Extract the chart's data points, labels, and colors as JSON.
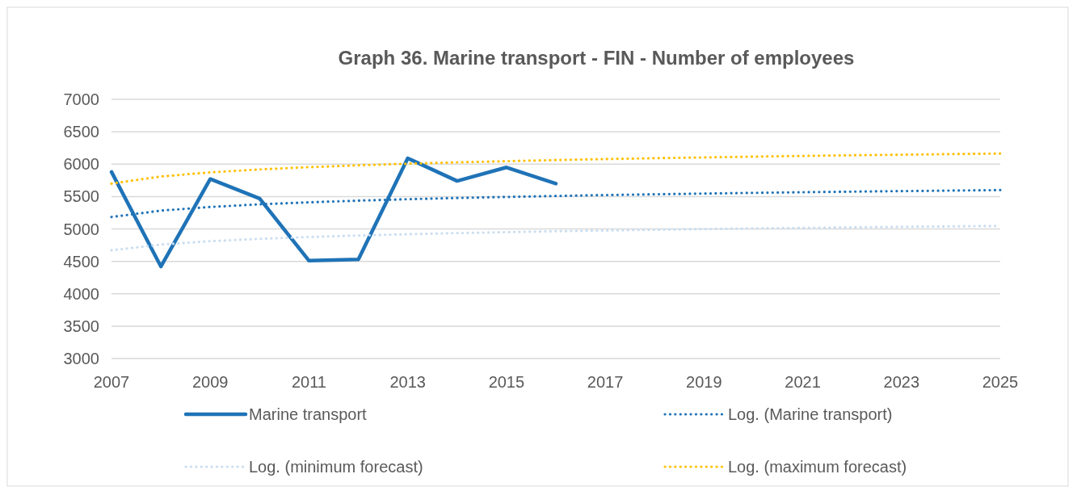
{
  "chart_data": {
    "type": "line",
    "title": "Graph 36. Marine transport - FIN - Number of employees",
    "x": [
      2007,
      2008,
      2009,
      2010,
      2011,
      2012,
      2013,
      2014,
      2015,
      2016,
      2017,
      2018,
      2019,
      2020,
      2021,
      2022,
      2023,
      2024,
      2025
    ],
    "xlim": [
      2007,
      2025
    ],
    "xticks": [
      2007,
      2009,
      2011,
      2013,
      2015,
      2017,
      2019,
      2021,
      2023,
      2025
    ],
    "ylim": [
      3000,
      7000
    ],
    "yticks": [
      3000,
      3500,
      4000,
      4500,
      5000,
      5500,
      6000,
      6500,
      7000
    ],
    "grid": "y",
    "legend": "bottom",
    "marker": "none",
    "series": [
      {
        "name": "Marine transport",
        "color": "#1f73b7",
        "line_style": "solid",
        "values": [
          5880,
          4420,
          5770,
          5470,
          4510,
          4530,
          6090,
          5740,
          5950,
          5700,
          null,
          null,
          null,
          null,
          null,
          null,
          null,
          null,
          null
        ]
      },
      {
        "name": "Log. (Marine transport)",
        "color": "#1f73b7",
        "line_style": "dotted",
        "values": [
          5184,
          5282,
          5339,
          5380,
          5411,
          5437,
          5459,
          5478,
          5494,
          5509,
          5523,
          5535,
          5546,
          5557,
          5567,
          5576,
          5584,
          5592,
          5600
        ]
      },
      {
        "name": "Log. (minimum forecast)",
        "color": "#c9ddf0",
        "line_style": "dotted",
        "values": [
          4670,
          4759,
          4811,
          4847,
          4876,
          4899,
          4919,
          4936,
          4951,
          4965,
          4977,
          4988,
          4998,
          5008,
          5017,
          5025,
          5033,
          5040,
          5047
        ]
      },
      {
        "name": "Log. (maximum forecast)",
        "color": "#ffc000",
        "line_style": "dotted",
        "values": [
          5700,
          5809,
          5873,
          5918,
          5954,
          5982,
          6007,
          6028,
          6046,
          6063,
          6078,
          6092,
          6104,
          6116,
          6127,
          6137,
          6146,
          6155,
          6164
        ]
      }
    ]
  }
}
